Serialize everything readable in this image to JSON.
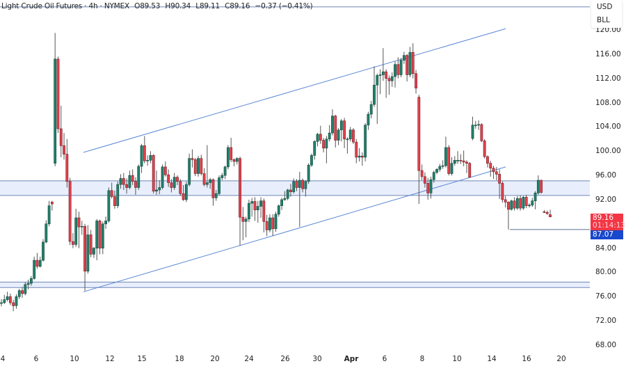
{
  "header": {
    "symbol": "Light Crude Oil Futures · 4h · NYMEX",
    "open": "O89.53",
    "high": "H90.34",
    "low": "L89.11",
    "close": "C89.16",
    "change": "−0.37 (−0.41%)"
  },
  "units": {
    "currency": "USD",
    "unit": "BLL"
  },
  "price_labels": {
    "last": "89.16",
    "countdown": "01:14:13",
    "low_line": "87.07"
  },
  "colors": {
    "up": "#22806b",
    "down": "#e0434f",
    "drawing": "#5b87d6",
    "band_fill": "#e8eefb",
    "last_tag": "#f23645",
    "low_tag": "#1848cc"
  },
  "chart_data": {
    "type": "candlestick",
    "title": "Light Crude Oil Futures · 4h · NYMEX",
    "ylim": [
      66,
      124
    ],
    "y_ticks": [
      "120.00",
      "116.00",
      "112.00",
      "108.00",
      "104.00",
      "100.00",
      "96.00",
      "92.00",
      "88.00",
      "84.00",
      "80.00",
      "76.00",
      "72.00",
      "68.00"
    ],
    "x_ticks": [
      "4",
      "6",
      "10",
      "12",
      "15",
      "18",
      "20",
      "24",
      "26",
      "30",
      "Apr",
      "6",
      "8",
      "10",
      "14",
      "16",
      "20"
    ],
    "grid": false,
    "drawings": {
      "channel_upper": [
        99.8,
        120.2
      ],
      "channel_lower": [
        76.8,
        97.4
      ],
      "zone_upper": [
        92.7,
        95.1
      ],
      "zone_lower": [
        77.5,
        78.4
      ],
      "top_line": 123.8,
      "low_line": 87.07
    },
    "candles": [
      [
        75,
        75.6,
        74.4,
        75
      ],
      [
        75,
        76.3,
        74.8,
        75.5
      ],
      [
        75.5,
        76.8,
        75.2,
        76
      ],
      [
        76,
        76.5,
        74.6,
        75
      ],
      [
        75,
        75.5,
        73.6,
        74.5
      ],
      [
        74.5,
        76.4,
        74,
        76
      ],
      [
        76,
        77.3,
        75.6,
        77
      ],
      [
        77,
        77.6,
        75.8,
        76.5
      ],
      [
        76.5,
        78.4,
        76.2,
        78
      ],
      [
        78,
        78.8,
        77.2,
        78.2
      ],
      [
        78.2,
        79.4,
        77.8,
        79
      ],
      [
        79,
        82.6,
        78.8,
        82
      ],
      [
        82,
        83.2,
        80.6,
        81
      ],
      [
        81,
        82.6,
        80.8,
        82
      ],
      [
        82,
        85.5,
        81.8,
        85
      ],
      [
        85,
        88.6,
        84.8,
        88
      ],
      [
        88,
        91.8,
        87.6,
        91
      ],
      [
        91.6,
        91.8,
        90.2,
        91.3
      ],
      [
        98,
        119.5,
        97.5,
        115.2
      ],
      [
        115.2,
        115.6,
        103,
        103.7
      ],
      [
        103.7,
        107.5,
        99,
        100.9
      ],
      [
        100.9,
        103,
        98.6,
        99.5
      ],
      [
        99.5,
        102,
        94,
        95
      ],
      [
        95,
        95.6,
        84.5,
        85.1
      ],
      [
        85.1,
        86.5,
        84,
        84.6
      ],
      [
        84.6,
        90.5,
        84.2,
        89
      ],
      [
        89,
        90,
        84,
        87.5
      ],
      [
        87.5,
        88.5,
        86.2,
        87.6
      ],
      [
        87.6,
        88,
        77,
        80.2
      ],
      [
        80.2,
        87.8,
        79.8,
        86.2
      ],
      [
        86.2,
        87,
        82.5,
        83
      ],
      [
        83,
        84.2,
        82.4,
        84
      ],
      [
        84,
        88.8,
        82,
        88.5
      ],
      [
        88.5,
        88.7,
        83,
        84
      ],
      [
        84,
        88.4,
        83,
        88
      ],
      [
        88,
        89.2,
        87.2,
        88.5
      ],
      [
        88.5,
        94,
        88.2,
        93.5
      ],
      [
        93.5,
        94.8,
        92.2,
        92.5
      ],
      [
        92.5,
        93.5,
        90.5,
        91
      ],
      [
        91,
        95,
        90.6,
        94.5
      ],
      [
        94.5,
        96.2,
        93.8,
        95.5
      ],
      [
        95.5,
        96.4,
        93.6,
        94.5
      ],
      [
        94.5,
        95.5,
        93,
        94
      ],
      [
        94,
        96.8,
        93.7,
        96
      ],
      [
        96,
        97,
        94.4,
        95
      ],
      [
        95,
        95.7,
        92.8,
        94
      ],
      [
        94,
        97.8,
        93.6,
        97.5
      ],
      [
        97.5,
        101.2,
        96.4,
        100.9
      ],
      [
        100.9,
        102.5,
        98,
        98.4
      ],
      [
        98.4,
        99.3,
        97.6,
        98.5
      ],
      [
        98.5,
        100,
        98,
        99.3
      ],
      [
        99.3,
        99.5,
        93,
        93.4
      ],
      [
        93.4,
        96.8,
        92.8,
        93.6
      ],
      [
        93.6,
        95.2,
        92.9,
        94
      ],
      [
        94,
        97.8,
        93.7,
        97.4
      ],
      [
        97.4,
        98.3,
        95.8,
        96.1
      ],
      [
        96.1,
        97,
        94.1,
        94.8
      ],
      [
        94.8,
        95.4,
        93.2,
        94
      ],
      [
        94,
        96.4,
        93.6,
        95.7
      ],
      [
        95.7,
        96,
        94.4,
        95
      ],
      [
        95,
        95.4,
        92.6,
        93
      ],
      [
        93,
        94.4,
        91.8,
        92
      ],
      [
        92,
        95,
        91.6,
        94.5
      ],
      [
        94.5,
        99.6,
        94.2,
        98.8
      ],
      [
        98.8,
        100.3,
        97.3,
        98.6
      ],
      [
        98.6,
        98.9,
        95.9,
        96.3
      ],
      [
        96.3,
        99.2,
        95.8,
        98.8
      ],
      [
        98.8,
        99.4,
        96,
        96.3
      ],
      [
        96.3,
        97.2,
        94.2,
        94.5
      ],
      [
        94.5,
        101,
        94,
        94.8
      ],
      [
        94.8,
        95.6,
        93.8,
        95.3
      ],
      [
        95.3,
        95.5,
        91,
        92.3
      ],
      [
        92.3,
        93.6,
        91.8,
        93
      ],
      [
        93,
        96,
        92.7,
        95.6
      ],
      [
        95.6,
        96.4,
        95.2,
        96
      ],
      [
        96,
        97.6,
        95.4,
        97.4
      ],
      [
        97.4,
        101,
        97,
        100.6
      ],
      [
        100.6,
        102.2,
        98.2,
        98.6
      ],
      [
        98.6,
        98.8,
        97.5,
        98.3
      ],
      [
        98.3,
        99,
        97.8,
        98.8
      ],
      [
        98.8,
        99.1,
        84.4,
        89.1
      ],
      [
        89.1,
        90.8,
        85.3,
        88.4
      ],
      [
        88.4,
        89.2,
        85.8,
        88.8
      ],
      [
        88.8,
        92,
        88.3,
        91.4
      ],
      [
        91.4,
        92.3,
        89.2,
        91.7
      ],
      [
        91.7,
        92.4,
        88.5,
        90.3
      ],
      [
        90.3,
        91.8,
        88.2,
        90.9
      ],
      [
        90.9,
        92.4,
        89,
        91.8
      ],
      [
        91.8,
        92.2,
        86.6,
        88.4
      ],
      [
        88.4,
        89.5,
        86,
        87
      ],
      [
        87,
        89.6,
        86.6,
        89
      ],
      [
        89,
        89.6,
        86,
        87.2
      ],
      [
        87.2,
        90,
        86.7,
        89.6
      ],
      [
        89.6,
        91.2,
        89.2,
        91
      ],
      [
        91,
        92.3,
        90.3,
        92
      ],
      [
        92,
        93.4,
        91.8,
        92.2
      ],
      [
        92.2,
        93.8,
        91.9,
        93.6
      ],
      [
        93.6,
        94.6,
        92.5,
        93.3
      ],
      [
        93.3,
        95.5,
        93,
        95
      ],
      [
        95,
        95.4,
        93.4,
        94
      ],
      [
        94,
        96.6,
        87.5,
        95.2
      ],
      [
        95.2,
        95.5,
        93.2,
        93.8
      ],
      [
        93.8,
        95.2,
        92.5,
        95
      ],
      [
        95,
        98,
        94.6,
        97.7
      ],
      [
        97.7,
        99.6,
        97.4,
        99.3
      ],
      [
        99.3,
        101.8,
        98.6,
        101.6
      ],
      [
        101.6,
        103,
        100.8,
        102.8
      ],
      [
        102.8,
        104.2,
        101.2,
        101.8
      ],
      [
        101.8,
        102.2,
        99.8,
        100.5
      ],
      [
        100.5,
        102.5,
        98,
        102
      ],
      [
        102,
        104.3,
        101.6,
        103
      ],
      [
        103,
        106.9,
        102.6,
        105.8
      ],
      [
        105.8,
        106,
        100.6,
        101.8
      ],
      [
        101.8,
        103.8,
        101,
        103.5
      ],
      [
        103.5,
        105.3,
        101.6,
        105
      ],
      [
        105,
        105.5,
        100.5,
        102
      ],
      [
        102,
        102.3,
        99.6,
        102
      ],
      [
        102,
        104,
        101.6,
        103.5
      ],
      [
        103.5,
        103.8,
        101.2,
        101.5
      ],
      [
        101.5,
        102,
        98,
        99
      ],
      [
        99,
        100.5,
        98.3,
        99.2
      ],
      [
        99.2,
        99.8,
        97.6,
        99
      ],
      [
        99,
        104.6,
        98.3,
        104.3
      ],
      [
        104.3,
        106.5,
        103.5,
        106.1
      ],
      [
        106.1,
        108.3,
        105.4,
        107.7
      ],
      [
        107.7,
        114,
        107.3,
        110.9
      ],
      [
        110.9,
        112.8,
        104.5,
        112.5
      ],
      [
        112.5,
        113.5,
        109.4,
        112.6
      ],
      [
        112.6,
        117,
        111.6,
        113.1
      ],
      [
        113.1,
        113.5,
        108.8,
        112
      ],
      [
        112,
        112.5,
        109.3,
        111.6
      ],
      [
        111.6,
        113,
        110.6,
        112.3
      ],
      [
        112.3,
        114.8,
        110.5,
        114.3
      ],
      [
        114.3,
        115.5,
        112,
        112.6
      ],
      [
        112.6,
        115.4,
        112.2,
        115
      ],
      [
        115,
        116.4,
        114.4,
        115.8
      ],
      [
        115.8,
        116,
        111.5,
        112.6
      ],
      [
        112.6,
        117.2,
        112.2,
        116.3
      ],
      [
        116.3,
        117.8,
        112,
        112.8
      ],
      [
        112.8,
        113.4,
        109.5,
        110.4
      ],
      [
        108.9,
        109.3,
        91.3,
        96.8
      ],
      [
        96.8,
        97.8,
        95.2,
        95.8
      ],
      [
        95.8,
        96.5,
        94,
        94.7
      ],
      [
        94.7,
        95.6,
        92,
        93.1
      ],
      [
        93.1,
        95.8,
        92.2,
        95.3
      ],
      [
        95.3,
        96.8,
        94.8,
        96.5
      ],
      [
        96.5,
        97.2,
        96.2,
        97
      ],
      [
        97,
        97.9,
        96.6,
        97.5
      ],
      [
        97.5,
        98.5,
        97.1,
        97.6
      ],
      [
        97.6,
        102.4,
        97.3,
        100.6
      ],
      [
        100.6,
        101,
        96,
        96.3
      ],
      [
        96.3,
        99,
        96,
        98
      ],
      [
        98,
        99.2,
        97.6,
        98.5
      ],
      [
        98.5,
        100,
        97.9,
        98.5
      ],
      [
        98.5,
        99.5,
        97.9,
        98.4
      ],
      [
        98.4,
        100.1,
        97.5,
        98.2
      ],
      [
        98.2,
        98.5,
        96.4,
        98
      ],
      [
        98,
        98.2,
        95.6,
        95.7
      ],
      [
        102.1,
        105.7,
        101.8,
        104.3
      ],
      [
        104.3,
        105,
        103.7,
        104.3
      ],
      [
        104.3,
        105.1,
        103.5,
        104.4
      ],
      [
        104.4,
        104.6,
        101.5,
        101.7
      ],
      [
        101.7,
        102,
        98.8,
        99.1
      ],
      [
        99.1,
        99.3,
        97.3,
        98
      ],
      [
        98,
        98.4,
        95.8,
        97.2
      ],
      [
        97.2,
        97.6,
        95.4,
        96.6
      ],
      [
        96.6,
        97.4,
        95.2,
        96.2
      ],
      [
        96.2,
        97,
        92.1,
        94.7
      ],
      [
        94.7,
        95,
        91.5,
        92
      ],
      [
        92,
        92.6,
        90.7,
        91.6
      ],
      [
        91.6,
        91.7,
        87.07,
        90.4
      ],
      [
        90.4,
        92,
        90.2,
        91.8
      ],
      [
        91.8,
        92.4,
        90.2,
        90.6
      ],
      [
        90.6,
        92.6,
        90.3,
        92.2
      ],
      [
        92.2,
        92.7,
        90.2,
        90.6
      ],
      [
        90.6,
        92.6,
        90.3,
        92.4
      ],
      [
        92.4,
        92.8,
        90.6,
        91
      ],
      [
        91,
        91.4,
        90.7,
        91.1
      ],
      [
        91.1,
        92.3,
        90.8,
        91.8
      ],
      [
        91.8,
        93.4,
        90.4,
        93.1
      ],
      [
        93.1,
        96,
        92.8,
        95.2
      ],
      [
        95.2,
        95.3,
        93,
        93.2
      ],
      [
        90,
        90.3,
        89.8,
        89.9
      ],
      [
        89.9,
        90.2,
        89.5,
        89.7
      ],
      [
        89.53,
        90.34,
        89.11,
        89.16
      ]
    ]
  }
}
